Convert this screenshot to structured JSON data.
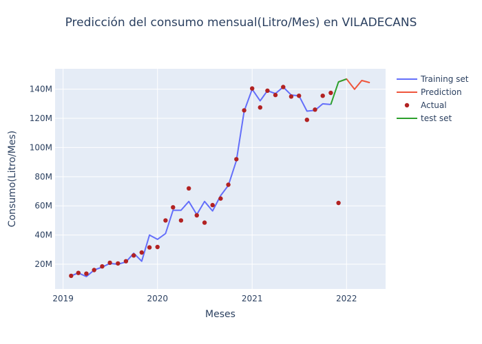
{
  "chart_data": {
    "type": "line",
    "title": "Predicción del consumo mensual(Litro/Mes) en VILADECANS",
    "xlabel": "Meses",
    "ylabel": "Consumo(Litro/Mes)",
    "x_range": [
      "2018-12-01",
      "2022-06-01"
    ],
    "ylim": [
      3000000,
      154000000
    ],
    "x_ticks": [
      {
        "date": "2019-01-01",
        "label": "2019"
      },
      {
        "date": "2020-01-01",
        "label": "2020"
      },
      {
        "date": "2021-01-01",
        "label": "2021"
      },
      {
        "date": "2022-01-01",
        "label": "2022"
      }
    ],
    "y_ticks": [
      {
        "value": 20000000,
        "label": "20M"
      },
      {
        "value": 40000000,
        "label": "40M"
      },
      {
        "value": 60000000,
        "label": "60M"
      },
      {
        "value": 80000000,
        "label": "80M"
      },
      {
        "value": 100000000,
        "label": "100M"
      },
      {
        "value": 120000000,
        "label": "120M"
      },
      {
        "value": 140000000,
        "label": "140M"
      }
    ],
    "grid": true,
    "legend_position": "top-right",
    "series": [
      {
        "name": "Training set",
        "mode": "line",
        "color": "#636efa",
        "points": [
          [
            "2019-02-01",
            12000000
          ],
          [
            "2019-03-01",
            14000000
          ],
          [
            "2019-04-01",
            11500000
          ],
          [
            "2019-05-01",
            16000000
          ],
          [
            "2019-06-01",
            18000000
          ],
          [
            "2019-07-01",
            20500000
          ],
          [
            "2019-08-01",
            20000000
          ],
          [
            "2019-09-01",
            21500000
          ],
          [
            "2019-10-01",
            27500000
          ],
          [
            "2019-11-01",
            22000000
          ],
          [
            "2019-12-01",
            40000000
          ],
          [
            "2020-01-01",
            37000000
          ],
          [
            "2020-02-01",
            41000000
          ],
          [
            "2020-03-01",
            57000000
          ],
          [
            "2020-04-01",
            57000000
          ],
          [
            "2020-05-01",
            63000000
          ],
          [
            "2020-06-01",
            54000000
          ],
          [
            "2020-07-01",
            63000000
          ],
          [
            "2020-08-01",
            56500000
          ],
          [
            "2020-09-01",
            67000000
          ],
          [
            "2020-10-01",
            74000000
          ],
          [
            "2020-11-01",
            91000000
          ],
          [
            "2020-12-01",
            125000000
          ],
          [
            "2021-01-01",
            140000000
          ],
          [
            "2021-02-01",
            132000000
          ],
          [
            "2021-03-01",
            139000000
          ],
          [
            "2021-04-01",
            137000000
          ],
          [
            "2021-05-01",
            141500000
          ],
          [
            "2021-06-01",
            136000000
          ],
          [
            "2021-07-01",
            135500000
          ],
          [
            "2021-08-01",
            125000000
          ],
          [
            "2021-09-01",
            125500000
          ],
          [
            "2021-10-01",
            130000000
          ],
          [
            "2021-11-01",
            129500000
          ]
        ]
      },
      {
        "name": "Prediction",
        "mode": "line",
        "color": "#ef553b",
        "points": [
          [
            "2021-12-01",
            145000000
          ],
          [
            "2022-01-01",
            147000000
          ],
          [
            "2022-02-01",
            140000000
          ],
          [
            "2022-03-01",
            146000000
          ],
          [
            "2022-04-01",
            144500000
          ]
        ]
      },
      {
        "name": "Actual",
        "mode": "markers",
        "color": "#b22222",
        "points": [
          [
            "2019-02-01",
            12000000
          ],
          [
            "2019-03-01",
            14000000
          ],
          [
            "2019-04-01",
            13500000
          ],
          [
            "2019-05-01",
            16000000
          ],
          [
            "2019-06-01",
            18500000
          ],
          [
            "2019-07-01",
            21000000
          ],
          [
            "2019-08-01",
            20500000
          ],
          [
            "2019-09-01",
            22000000
          ],
          [
            "2019-10-01",
            26000000
          ],
          [
            "2019-11-01",
            28000000
          ],
          [
            "2019-12-01",
            31500000
          ],
          [
            "2020-01-01",
            31800000
          ],
          [
            "2020-02-01",
            50000000
          ],
          [
            "2020-03-01",
            59000000
          ],
          [
            "2020-04-01",
            50000000
          ],
          [
            "2020-05-01",
            72000000
          ],
          [
            "2020-06-01",
            53500000
          ],
          [
            "2020-07-01",
            48500000
          ],
          [
            "2020-08-01",
            60500000
          ],
          [
            "2020-09-01",
            65000000
          ],
          [
            "2020-10-01",
            74500000
          ],
          [
            "2020-11-01",
            92000000
          ],
          [
            "2020-12-01",
            125500000
          ],
          [
            "2021-01-01",
            140500000
          ],
          [
            "2021-02-01",
            127500000
          ],
          [
            "2021-03-01",
            139000000
          ],
          [
            "2021-04-01",
            136000000
          ],
          [
            "2021-05-01",
            141500000
          ],
          [
            "2021-06-01",
            135000000
          ],
          [
            "2021-07-01",
            135500000
          ],
          [
            "2021-08-01",
            119000000
          ],
          [
            "2021-09-01",
            126000000
          ],
          [
            "2021-10-01",
            135500000
          ],
          [
            "2021-11-01",
            137500000
          ],
          [
            "2021-12-01",
            62000000
          ]
        ]
      },
      {
        "name": "test set",
        "mode": "line",
        "color": "#2ca02c",
        "points": [
          [
            "2021-11-01",
            129500000
          ],
          [
            "2021-12-01",
            145000000
          ],
          [
            "2022-01-01",
            147000000
          ]
        ]
      }
    ]
  }
}
